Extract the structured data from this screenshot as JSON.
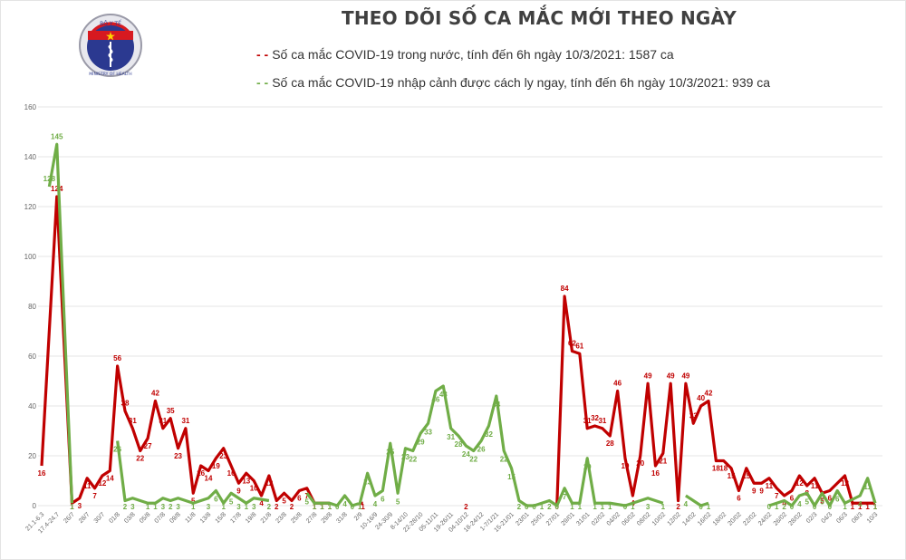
{
  "header": {
    "title": "THEO DÕI SỐ CA MẮC MỚI THEO NGÀY",
    "logo": {
      "top_text": "BỘ Y TẾ",
      "bottom_text": "MINISTRY OF HEALTH"
    }
  },
  "legend": {
    "domestic": "- -Số ca mắc COVID-19 trong nước, tính đến 6h ngày 10/3/2021: 1587 ca",
    "imported": "- -Số ca mắc COVID-19 nhập cảnh được cách ly ngay, tính đến 6h ngày 10/3/2021: 939 ca"
  },
  "colors": {
    "domestic": "#c00000",
    "imported": "#70ad47",
    "grid": "#e6e6e6",
    "axis_text": "#666666"
  },
  "chart_data": {
    "type": "line",
    "title": "THEO DÕI SỐ CA MẮC MỚI THEO NGÀY",
    "xlabel": "",
    "ylabel": "",
    "ylim": [
      0,
      160
    ],
    "yticks": [
      0,
      20,
      40,
      60,
      80,
      100,
      120,
      140,
      160
    ],
    "grid": true,
    "legend_position": "top",
    "xtick_labels": [
      "21.1-6.3",
      "17.4-24.7",
      "26/7",
      "28/7",
      "30/7",
      "01/8",
      "03/8",
      "05/8",
      "07/8",
      "09/8",
      "11/8",
      "13/8",
      "15/8",
      "17/8",
      "19/8",
      "21/8",
      "23/8",
      "25/8",
      "27/8",
      "29/8",
      "31/8",
      "2/9",
      "10-16/9",
      "24-30/9",
      "8-14/10",
      "22-28/10",
      "05-11/11",
      "19-26/11",
      "04-10/12",
      "18-24/12",
      "1-7/1/21",
      "15-21/01",
      "23/01",
      "25/01",
      "27/01",
      "29/01",
      "31/01",
      "02/02",
      "04/02",
      "06/02",
      "08/02",
      "10/02",
      "12/02",
      "14/02",
      "16/02",
      "18/02",
      "20/02",
      "22/02",
      "24/02",
      "26/02",
      "28/02",
      "02/3",
      "04/3",
      "06/3",
      "08/3",
      "10/3"
    ],
    "series": [
      {
        "name": "Số ca mắc COVID-19 trong nước",
        "color": "#c00000",
        "points": [
          [
            0,
            16
          ],
          [
            1,
            124
          ],
          [
            2,
            1
          ],
          [
            2.5,
            3
          ],
          [
            3,
            11
          ],
          [
            3.5,
            7
          ],
          [
            4,
            12
          ],
          [
            4.5,
            14
          ],
          [
            5,
            56
          ],
          [
            5.5,
            38
          ],
          [
            6,
            31
          ],
          [
            6.5,
            22
          ],
          [
            7,
            27
          ],
          [
            7.5,
            42
          ],
          [
            8,
            31
          ],
          [
            8.5,
            35
          ],
          [
            9,
            23
          ],
          [
            9.5,
            31
          ],
          [
            10,
            5
          ],
          [
            10.5,
            16
          ],
          [
            11,
            14
          ],
          [
            11.5,
            19
          ],
          [
            12,
            23
          ],
          [
            12.5,
            16
          ],
          [
            13,
            9
          ],
          [
            13.5,
            13
          ],
          [
            14,
            10
          ],
          [
            14.5,
            4
          ],
          [
            15,
            12
          ],
          [
            15.5,
            2
          ],
          [
            16,
            5
          ],
          [
            16.5,
            2
          ],
          [
            17,
            6
          ],
          [
            17.5,
            7
          ],
          [
            18,
            1
          ],
          [
            18.5,
            1
          ],
          [
            19,
            1
          ],
          [
            21,
            1
          ],
          [
            21.2,
            1
          ],
          [
            28,
            2
          ],
          [
            34,
            0
          ],
          [
            34.5,
            84
          ],
          [
            35,
            62
          ],
          [
            35.5,
            61
          ],
          [
            36,
            31
          ],
          [
            36.5,
            32
          ],
          [
            37,
            31
          ],
          [
            37.5,
            28
          ],
          [
            38,
            46
          ],
          [
            38.5,
            19
          ],
          [
            39,
            4
          ],
          [
            39.5,
            20
          ],
          [
            40,
            49
          ],
          [
            40.5,
            16
          ],
          [
            41,
            21
          ],
          [
            41.5,
            49
          ],
          [
            42,
            2
          ],
          [
            42.5,
            49
          ],
          [
            43,
            33
          ],
          [
            43.5,
            40
          ],
          [
            44,
            42
          ],
          [
            44.5,
            18
          ],
          [
            45,
            18
          ],
          [
            45.5,
            15
          ],
          [
            46,
            6
          ],
          [
            46.5,
            15
          ],
          [
            47,
            9
          ],
          [
            47.5,
            9
          ],
          [
            48,
            11
          ],
          [
            48.5,
            7
          ],
          [
            49,
            4
          ],
          [
            49.5,
            6
          ],
          [
            50,
            12
          ],
          [
            50.5,
            8
          ],
          [
            51,
            11
          ],
          [
            51.5,
            5
          ],
          [
            52,
            6
          ],
          [
            53,
            12
          ],
          [
            53.5,
            1
          ],
          [
            54,
            1
          ],
          [
            54.5,
            1
          ],
          [
            55,
            1
          ]
        ]
      },
      {
        "name": "Số ca mắc COVID-19 nhập cảnh được cách ly ngay",
        "color": "#70ad47",
        "points": [
          [
            0.5,
            128
          ],
          [
            1,
            145
          ],
          [
            2,
            1
          ],
          [
            5,
            26
          ],
          [
            5.5,
            2
          ],
          [
            6,
            3
          ],
          [
            7,
            1
          ],
          [
            7.5,
            1
          ],
          [
            8,
            3
          ],
          [
            8.5,
            2
          ],
          [
            9,
            3
          ],
          [
            10,
            1
          ],
          [
            11,
            3
          ],
          [
            11.5,
            6
          ],
          [
            12,
            1
          ],
          [
            12.5,
            5
          ],
          [
            13,
            3
          ],
          [
            13.5,
            1
          ],
          [
            14,
            3
          ],
          [
            15,
            2
          ],
          [
            17.5,
            5
          ],
          [
            18,
            1
          ],
          [
            18.5,
            1
          ],
          [
            19,
            1
          ],
          [
            19.5,
            0
          ],
          [
            20,
            4
          ],
          [
            20.5,
            0
          ],
          [
            21,
            1
          ],
          [
            21.5,
            13
          ],
          [
            22,
            4
          ],
          [
            22.5,
            6
          ],
          [
            23,
            25
          ],
          [
            23.5,
            5
          ],
          [
            24,
            23
          ],
          [
            24.5,
            22
          ],
          [
            25,
            29
          ],
          [
            25.5,
            33
          ],
          [
            26,
            46
          ],
          [
            26.5,
            48
          ],
          [
            27,
            31
          ],
          [
            27.5,
            28
          ],
          [
            28,
            24
          ],
          [
            28.5,
            22
          ],
          [
            29,
            26
          ],
          [
            29.5,
            32
          ],
          [
            30,
            44
          ],
          [
            30.5,
            22
          ],
          [
            31,
            15
          ],
          [
            31.5,
            2
          ],
          [
            32,
            0
          ],
          [
            32.5,
            0
          ],
          [
            33,
            1
          ],
          [
            33.5,
            2
          ],
          [
            34,
            0
          ],
          [
            34.5,
            7
          ],
          [
            35,
            1
          ],
          [
            35.5,
            1
          ],
          [
            36,
            19
          ],
          [
            36.5,
            1
          ],
          [
            37,
            1
          ],
          [
            37.5,
            1
          ],
          [
            38.5,
            0
          ],
          [
            39,
            1
          ],
          [
            40,
            3
          ],
          [
            41,
            1
          ],
          [
            42.5,
            4
          ],
          [
            43.5,
            0
          ],
          [
            44,
            1
          ],
          [
            48,
            0
          ],
          [
            48.5,
            1
          ],
          [
            49,
            2
          ],
          [
            49.5,
            0
          ],
          [
            50,
            4
          ],
          [
            50.5,
            5
          ],
          [
            51,
            0
          ],
          [
            51.5,
            5
          ],
          [
            52,
            0
          ],
          [
            52.5,
            6
          ],
          [
            53,
            1
          ],
          [
            54,
            4
          ],
          [
            54.5,
            11
          ],
          [
            55,
            1
          ]
        ]
      }
    ]
  }
}
